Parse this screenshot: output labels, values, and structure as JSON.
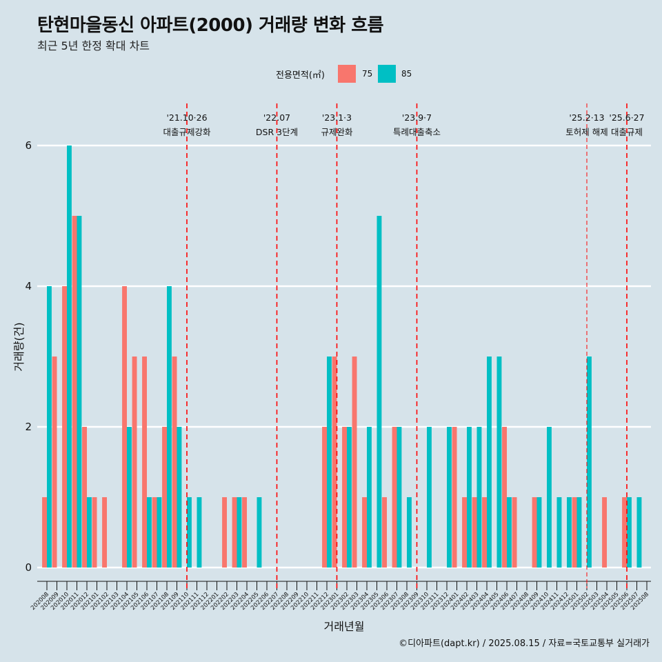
{
  "header": {
    "title": "탄현마을동신 아파트(2000) 거래량 변화 흐름",
    "subtitle": "최근 5년 한정 확대 차트"
  },
  "legend": {
    "title": "전용면적(㎡)",
    "items": [
      {
        "label": "75",
        "color": "#f8766d"
      },
      {
        "label": "85",
        "color": "#00bfc4"
      }
    ]
  },
  "caption": "©디아파트(dapt.kr) / 2025.08.15 / 자료=국토교통부 실거래가",
  "chart_data": {
    "type": "bar",
    "xlabel": "거래년월",
    "ylabel": "거래량(건)",
    "ylim": [
      0,
      6
    ],
    "y_ticks": [
      0,
      2,
      4,
      6
    ],
    "grid": true,
    "legend_position": "top",
    "categories": [
      "202008",
      "202009",
      "202010",
      "202011",
      "202012",
      "202101",
      "202102",
      "202103",
      "202104",
      "202105",
      "202106",
      "202107",
      "202108",
      "202109",
      "202110",
      "202111",
      "202112",
      "202201",
      "202202",
      "202203",
      "202204",
      "202205",
      "202206",
      "202207",
      "202208",
      "202209",
      "202210",
      "202211",
      "202212",
      "202301",
      "202302",
      "202303",
      "202304",
      "202305",
      "202306",
      "202307",
      "202308",
      "202309",
      "202310",
      "202311",
      "202312",
      "202401",
      "202402",
      "202403",
      "202404",
      "202405",
      "202406",
      "202407",
      "202408",
      "202409",
      "202410",
      "202411",
      "202412",
      "202501",
      "202502",
      "202503",
      "202504",
      "202505",
      "202506",
      "202507",
      "202508"
    ],
    "series": [
      {
        "name": "75",
        "color": "#f8766d",
        "values": [
          1,
          3,
          4,
          5,
          2,
          1,
          1,
          0,
          4,
          3,
          3,
          1,
          2,
          3,
          0,
          0,
          0,
          0,
          1,
          1,
          1,
          0,
          0,
          0,
          0,
          0,
          0,
          0,
          2,
          3,
          2,
          3,
          1,
          0,
          1,
          2,
          0,
          0,
          0,
          0,
          0,
          2,
          1,
          1,
          1,
          0,
          2,
          1,
          0,
          1,
          0,
          0,
          0,
          1,
          0,
          0,
          1,
          0,
          1,
          0,
          0
        ]
      },
      {
        "name": "85",
        "color": "#00bfc4",
        "values": [
          4,
          0,
          6,
          5,
          1,
          0,
          0,
          0,
          2,
          0,
          1,
          1,
          4,
          2,
          1,
          1,
          0,
          0,
          0,
          1,
          0,
          1,
          0,
          0,
          0,
          0,
          0,
          0,
          3,
          0,
          2,
          0,
          2,
          5,
          0,
          2,
          1,
          0,
          2,
          0,
          2,
          0,
          2,
          2,
          3,
          3,
          1,
          0,
          0,
          1,
          2,
          1,
          1,
          1,
          3,
          0,
          0,
          0,
          1,
          1,
          0
        ]
      }
    ],
    "annotations": [
      {
        "category": "202110",
        "date": "'21.10·26",
        "label": "대출규제강화",
        "style": "dashed"
      },
      {
        "category": "202207",
        "date": "'22.07",
        "label": "DSR 3단계",
        "style": "dashed"
      },
      {
        "category": "202301",
        "date": "'23.1·3",
        "label": "규제완화",
        "style": "dashed"
      },
      {
        "category": "202309",
        "date": "'23.9·7",
        "label": "특례대출축소",
        "style": "dashed"
      },
      {
        "category": "202502",
        "date": "'25.2·13",
        "label": "토허제 해제",
        "style": "thin"
      },
      {
        "category": "202506",
        "date": "'25.6·27",
        "label": "대출규제",
        "style": "dashed"
      }
    ]
  }
}
